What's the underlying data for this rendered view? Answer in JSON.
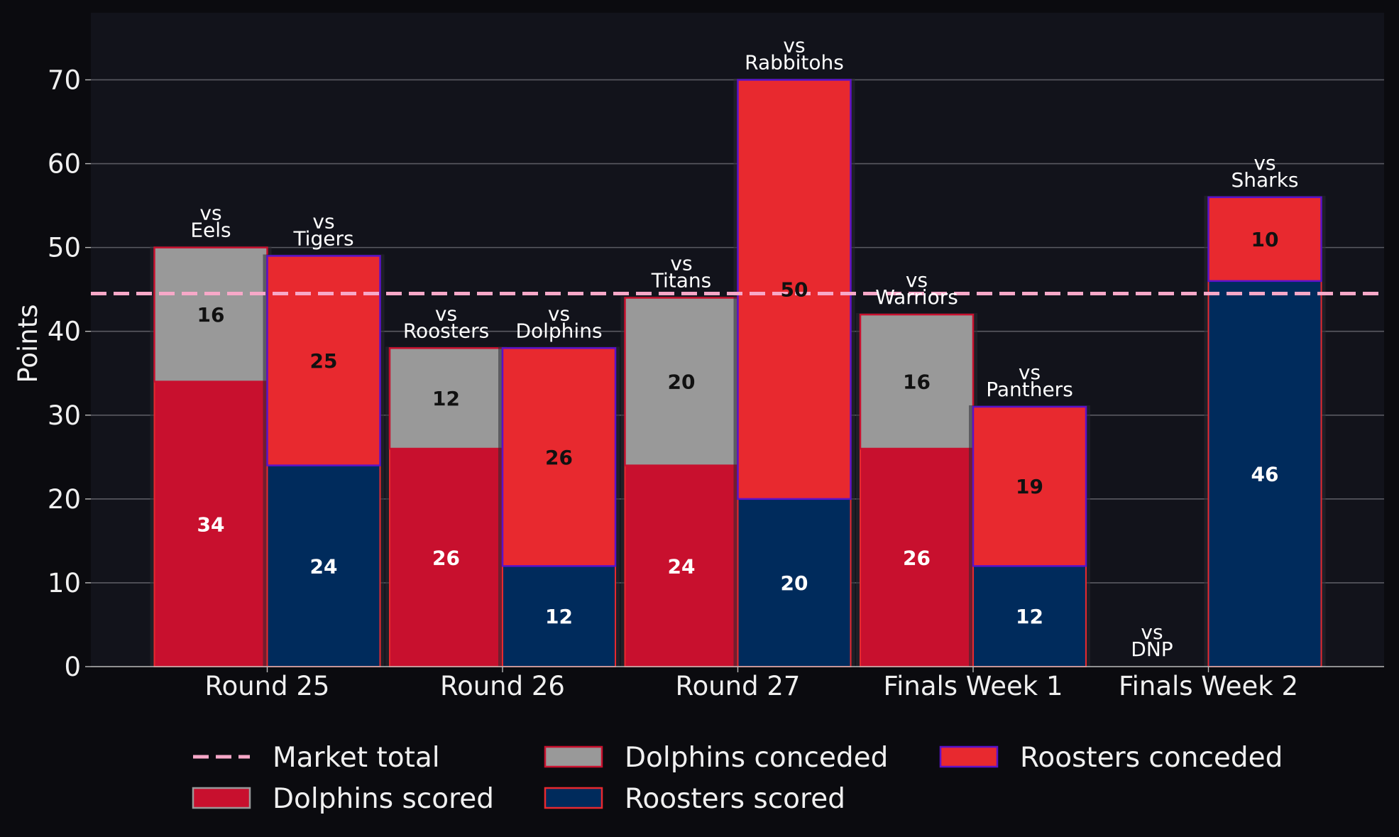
{
  "chart_data": {
    "type": "bar",
    "ylabel": "Points",
    "ylim": [
      0,
      78
    ],
    "yticks": [
      "0",
      "10",
      "20",
      "30",
      "40",
      "50",
      "60",
      "70"
    ],
    "grid": true,
    "categories": [
      "Round 25",
      "Round 26",
      "Round 27",
      "Finals Week 1",
      "Finals Week 2"
    ],
    "market_total": 44.5,
    "colors": {
      "background": "#0b0b0f",
      "plot_background": "#12131b",
      "dolphins_scored": "#c8102e",
      "dolphins_conceded": "#999999",
      "roosters_scored": "#002b5c",
      "roosters_conceded": "#e8292f",
      "market_total": "#f7a8c8",
      "grid": "#5a5a62"
    },
    "teams": [
      {
        "key": "dolphins",
        "scored_values": [
          34,
          26,
          24,
          26,
          0
        ],
        "conceded_values": [
          16,
          12,
          20,
          16,
          0
        ],
        "opponents": [
          [
            "vs",
            "Eels"
          ],
          [
            "vs",
            "Roosters"
          ],
          [
            "vs",
            "Titans"
          ],
          [
            "vs",
            "Warriors"
          ],
          [
            "vs",
            "DNP"
          ]
        ]
      },
      {
        "key": "roosters",
        "scored_values": [
          24,
          12,
          20,
          12,
          46
        ],
        "conceded_values": [
          25,
          26,
          50,
          19,
          10
        ],
        "opponents": [
          [
            "vs",
            "Tigers"
          ],
          [
            "vs",
            "Dolphins"
          ],
          [
            "vs",
            "Rabbitohs"
          ],
          [
            "vs",
            "Panthers"
          ],
          [
            "vs",
            "Sharks"
          ]
        ]
      }
    ],
    "legend": {
      "position": "bottom",
      "items": [
        {
          "key": "market_total",
          "label": "Market total"
        },
        {
          "key": "dolphins_conceded",
          "label": "Dolphins conceded"
        },
        {
          "key": "roosters_conceded",
          "label": "Roosters conceded"
        },
        {
          "key": "dolphins_scored",
          "label": "Dolphins scored"
        },
        {
          "key": "roosters_scored",
          "label": "Roosters scored"
        }
      ]
    }
  }
}
